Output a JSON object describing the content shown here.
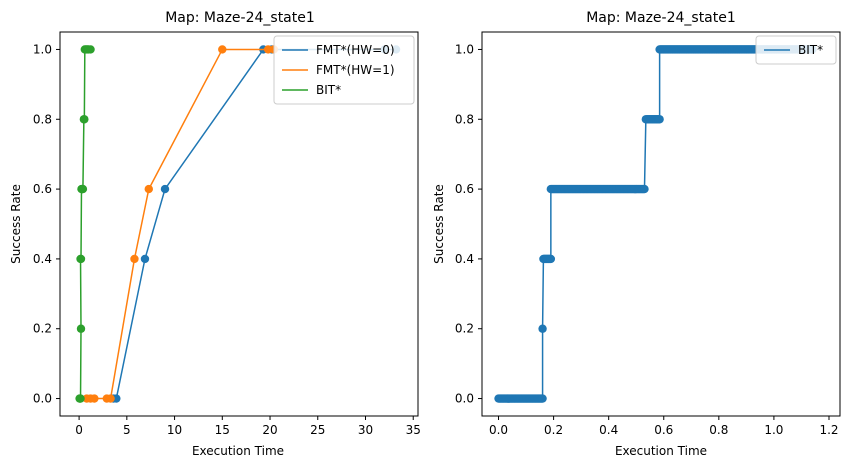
{
  "chart_data": [
    {
      "type": "line",
      "title": "Map: Maze-24_state1",
      "xlabel": "Execution Time",
      "ylabel": "Success Rate",
      "xlim": [
        -2.0,
        35.5
      ],
      "ylim": [
        -0.05,
        1.05
      ],
      "xticks": [
        "0",
        "5",
        "10",
        "15",
        "20",
        "25",
        "30",
        "35"
      ],
      "yticks": [
        "0.0",
        "0.2",
        "0.4",
        "0.6",
        "0.8",
        "1.0"
      ],
      "legend_position": "top-right",
      "series": [
        {
          "name": "FMT*(HW=0)",
          "color": "#1f77b4",
          "x": [
            3.6,
            3.9,
            6.9,
            9.0,
            19.3,
            20.2,
            32.0,
            33.2
          ],
          "y": [
            0.0,
            0.0,
            0.4,
            0.6,
            1.0,
            1.0,
            1.0,
            1.0
          ]
        },
        {
          "name": "FMT*(HW=1)",
          "color": "#ff7f0e",
          "x": [
            0.8,
            1.2,
            1.6,
            2.9,
            3.3,
            5.8,
            7.3,
            15.0,
            19.8,
            20.4
          ],
          "y": [
            0.0,
            0.0,
            0.0,
            0.0,
            0.0,
            0.4,
            0.6,
            1.0,
            1.0,
            1.0
          ]
        },
        {
          "name": "BIT*",
          "color": "#2ca02c",
          "x": [
            0.05,
            0.1,
            0.15,
            0.2,
            0.15,
            0.2,
            0.25,
            0.3,
            0.35,
            0.4,
            0.5,
            0.55,
            0.6,
            0.7,
            0.8,
            0.9,
            1.0,
            1.2
          ],
          "y": [
            0.0,
            0.0,
            0.0,
            0.2,
            0.4,
            0.4,
            0.6,
            0.6,
            0.6,
            0.6,
            0.8,
            0.8,
            1.0,
            1.0,
            1.0,
            1.0,
            1.0,
            1.0
          ]
        }
      ]
    },
    {
      "type": "line",
      "title": "Map: Maze-24_state1",
      "xlabel": "Execution Time",
      "ylabel": "Success Rate",
      "xlim": [
        -0.06,
        1.24
      ],
      "ylim": [
        -0.05,
        1.05
      ],
      "xticks": [
        "0.0",
        "0.2",
        "0.4",
        "0.6",
        "0.8",
        "1.0",
        "1.2"
      ],
      "yticks": [
        "0.0",
        "0.2",
        "0.4",
        "0.6",
        "0.8",
        "1.0"
      ],
      "legend_position": "top-right",
      "series": [
        {
          "name": "BIT*",
          "color": "#1f77b4",
          "segments": [
            {
              "x0": 0.0,
              "x1": 0.16,
              "y": 0.0,
              "n": 60
            },
            {
              "x0": 0.16,
              "x1": 0.16,
              "y": 0.2,
              "n": 1
            },
            {
              "x0": 0.163,
              "x1": 0.19,
              "y": 0.4,
              "n": 12
            },
            {
              "x0": 0.19,
              "x1": 0.53,
              "y": 0.6,
              "n": 120
            },
            {
              "x0": 0.535,
              "x1": 0.585,
              "y": 0.8,
              "n": 20
            },
            {
              "x0": 0.585,
              "x1": 1.14,
              "y": 1.0,
              "n": 220
            }
          ]
        }
      ]
    }
  ]
}
